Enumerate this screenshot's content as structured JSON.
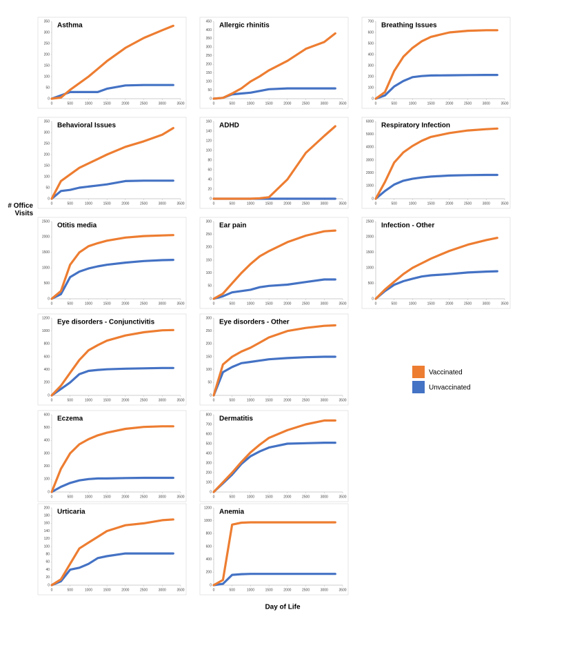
{
  "y_label": "# Office Visits",
  "x_label": "Day of Life",
  "chart_data": [
    {
      "type": "line",
      "title": "Asthma",
      "x": [
        0,
        250,
        500,
        750,
        1000,
        1250,
        1500,
        2000,
        2500,
        3000,
        3300
      ],
      "xlim": [
        0,
        3500
      ],
      "xticks": [
        0,
        500,
        1000,
        1500,
        2000,
        2500,
        3000,
        3500
      ],
      "ylim": [
        0,
        350
      ],
      "yticks": [
        0,
        50,
        100,
        150,
        200,
        250,
        300,
        350
      ],
      "series": [
        {
          "name": "Vaccinated",
          "color": "#ed7d31",
          "values": [
            0,
            5,
            40,
            70,
            100,
            135,
            170,
            230,
            275,
            310,
            330
          ]
        },
        {
          "name": "Unvaccinated",
          "color": "#4472c4",
          "values": [
            0,
            15,
            30,
            30,
            30,
            30,
            45,
            60,
            62,
            62,
            62
          ]
        }
      ]
    },
    {
      "type": "line",
      "title": "Allergic  rhinitis",
      "x": [
        0,
        250,
        500,
        750,
        1000,
        1250,
        1500,
        2000,
        2500,
        3000,
        3300
      ],
      "xlim": [
        0,
        3500
      ],
      "xticks": [
        0,
        500,
        1000,
        1500,
        2000,
        2500,
        3000,
        3500
      ],
      "ylim": [
        0,
        450
      ],
      "yticks": [
        0,
        50,
        100,
        150,
        200,
        250,
        300,
        350,
        400,
        450
      ],
      "series": [
        {
          "name": "Vaccinated",
          "color": "#ed7d31",
          "values": [
            0,
            5,
            30,
            60,
            100,
            130,
            165,
            220,
            290,
            330,
            380
          ]
        },
        {
          "name": "Unvaccinated",
          "color": "#4472c4",
          "values": [
            0,
            5,
            25,
            30,
            35,
            45,
            55,
            60,
            60,
            60,
            60
          ]
        }
      ]
    },
    {
      "type": "line",
      "title": "Breathing  Issues",
      "x": [
        0,
        250,
        500,
        750,
        1000,
        1250,
        1500,
        2000,
        2500,
        3000,
        3300
      ],
      "xlim": [
        0,
        3500
      ],
      "xticks": [
        0,
        500,
        1000,
        1500,
        2000,
        2500,
        3000,
        3500
      ],
      "ylim": [
        0,
        700
      ],
      "yticks": [
        0,
        100,
        200,
        300,
        400,
        500,
        600,
        700
      ],
      "series": [
        {
          "name": "Vaccinated",
          "color": "#ed7d31",
          "values": [
            0,
            60,
            250,
            380,
            460,
            520,
            560,
            600,
            615,
            620,
            620
          ]
        },
        {
          "name": "Unvaccinated",
          "color": "#4472c4",
          "values": [
            0,
            30,
            110,
            160,
            195,
            205,
            210,
            212,
            214,
            215,
            215
          ]
        }
      ]
    },
    {
      "type": "line",
      "title": "Behavioral  Issues",
      "x": [
        0,
        250,
        500,
        750,
        1000,
        1250,
        1500,
        2000,
        2500,
        3000,
        3300
      ],
      "xlim": [
        0,
        3500
      ],
      "xticks": [
        0,
        500,
        1000,
        1500,
        2000,
        2500,
        3000,
        3500
      ],
      "ylim": [
        0,
        350
      ],
      "yticks": [
        0,
        50,
        100,
        150,
        200,
        250,
        300,
        350
      ],
      "series": [
        {
          "name": "Vaccinated",
          "color": "#ed7d31",
          "values": [
            0,
            80,
            110,
            140,
            160,
            180,
            200,
            235,
            260,
            290,
            320
          ]
        },
        {
          "name": "Unvaccinated",
          "color": "#4472c4",
          "values": [
            0,
            35,
            40,
            50,
            55,
            60,
            65,
            80,
            82,
            82,
            82
          ]
        }
      ]
    },
    {
      "type": "line",
      "title": "ADHD",
      "x": [
        0,
        250,
        500,
        750,
        1000,
        1250,
        1500,
        2000,
        2500,
        3000,
        3300
      ],
      "xlim": [
        0,
        3500
      ],
      "xticks": [
        0,
        500,
        1000,
        1500,
        2000,
        2500,
        3000,
        3500
      ],
      "ylim": [
        0,
        160
      ],
      "yticks": [
        0,
        20,
        40,
        60,
        80,
        100,
        120,
        140,
        160
      ],
      "series": [
        {
          "name": "Vaccinated",
          "color": "#ed7d31",
          "values": [
            0,
            0,
            0,
            0,
            0,
            1,
            3,
            40,
            95,
            130,
            150
          ]
        },
        {
          "name": "Unvaccinated",
          "color": "#4472c4",
          "values": [
            0,
            0,
            0,
            0,
            0,
            0,
            0,
            0,
            0,
            0,
            0
          ]
        }
      ]
    },
    {
      "type": "line",
      "title": "Respiratory Infection",
      "x": [
        0,
        250,
        500,
        750,
        1000,
        1250,
        1500,
        2000,
        2500,
        3000,
        3300
      ],
      "xlim": [
        0,
        3500
      ],
      "xticks": [
        0,
        500,
        1000,
        1500,
        2000,
        2500,
        3000,
        3500
      ],
      "ylim": [
        0,
        6000
      ],
      "yticks": [
        0,
        1000,
        2000,
        3000,
        4000,
        5000,
        6000
      ],
      "series": [
        {
          "name": "Vaccinated",
          "color": "#ed7d31",
          "values": [
            0,
            1300,
            2800,
            3600,
            4100,
            4500,
            4800,
            5100,
            5300,
            5400,
            5450
          ]
        },
        {
          "name": "Unvaccinated",
          "color": "#4472c4",
          "values": [
            0,
            600,
            1100,
            1400,
            1550,
            1650,
            1720,
            1800,
            1830,
            1850,
            1850
          ]
        }
      ]
    },
    {
      "type": "line",
      "title": "Otitis media",
      "x": [
        0,
        250,
        500,
        750,
        1000,
        1250,
        1500,
        2000,
        2500,
        3000,
        3300
      ],
      "xlim": [
        0,
        3500
      ],
      "xticks": [
        0,
        500,
        1000,
        1500,
        2000,
        2500,
        3000,
        3500
      ],
      "ylim": [
        0,
        2500
      ],
      "yticks": [
        0,
        500,
        1000,
        1500,
        2000,
        2500
      ],
      "series": [
        {
          "name": "Vaccinated",
          "color": "#ed7d31",
          "values": [
            0,
            250,
            1100,
            1500,
            1700,
            1800,
            1880,
            1980,
            2030,
            2050,
            2060
          ]
        },
        {
          "name": "Unvaccinated",
          "color": "#4472c4",
          "values": [
            0,
            150,
            700,
            880,
            980,
            1050,
            1100,
            1170,
            1220,
            1250,
            1260
          ]
        }
      ]
    },
    {
      "type": "line",
      "title": "Ear pain",
      "x": [
        0,
        250,
        500,
        750,
        1000,
        1250,
        1500,
        2000,
        2500,
        3000,
        3300
      ],
      "xlim": [
        0,
        3500
      ],
      "xticks": [
        0,
        500,
        1000,
        1500,
        2000,
        2500,
        3000,
        3500
      ],
      "ylim": [
        0,
        300
      ],
      "yticks": [
        0,
        50,
        100,
        150,
        200,
        250,
        300
      ],
      "series": [
        {
          "name": "Vaccinated",
          "color": "#ed7d31",
          "values": [
            0,
            20,
            60,
            100,
            135,
            165,
            185,
            220,
            245,
            262,
            265
          ]
        },
        {
          "name": "Unvaccinated",
          "color": "#4472c4",
          "values": [
            0,
            10,
            25,
            30,
            35,
            45,
            50,
            55,
            65,
            75,
            75
          ]
        }
      ]
    },
    {
      "type": "line",
      "title": "Infection  - Other",
      "x": [
        0,
        250,
        500,
        750,
        1000,
        1250,
        1500,
        2000,
        2500,
        3000,
        3300
      ],
      "xlim": [
        0,
        3500
      ],
      "xticks": [
        0,
        500,
        1000,
        1500,
        2000,
        2500,
        3000,
        3500
      ],
      "ylim": [
        0,
        2500
      ],
      "yticks": [
        0,
        500,
        1000,
        1500,
        2000,
        2500
      ],
      "series": [
        {
          "name": "Vaccinated",
          "color": "#ed7d31",
          "values": [
            0,
            300,
            550,
            800,
            1000,
            1150,
            1300,
            1550,
            1750,
            1900,
            1970
          ]
        },
        {
          "name": "Unvaccinated",
          "color": "#4472c4",
          "values": [
            0,
            250,
            450,
            570,
            650,
            720,
            760,
            800,
            850,
            880,
            890
          ]
        }
      ]
    },
    {
      "type": "line",
      "title": "Eye disorders - Conjunctivitis",
      "x": [
        0,
        250,
        500,
        750,
        1000,
        1250,
        1500,
        2000,
        2500,
        3000,
        3300
      ],
      "xlim": [
        0,
        3500
      ],
      "xticks": [
        0,
        500,
        1000,
        1500,
        2000,
        2500,
        3000,
        3500
      ],
      "ylim": [
        0,
        1200
      ],
      "yticks": [
        0,
        200,
        400,
        600,
        800,
        1000,
        1200
      ],
      "series": [
        {
          "name": "Vaccinated",
          "color": "#ed7d31",
          "values": [
            0,
            150,
            350,
            550,
            700,
            780,
            850,
            930,
            980,
            1010,
            1015
          ]
        },
        {
          "name": "Unvaccinated",
          "color": "#4472c4",
          "values": [
            0,
            100,
            200,
            330,
            380,
            395,
            405,
            415,
            420,
            425,
            425
          ]
        }
      ]
    },
    {
      "type": "line",
      "title": "Eye disorders - Other",
      "x": [
        0,
        250,
        500,
        750,
        1000,
        1250,
        1500,
        2000,
        2500,
        3000,
        3300
      ],
      "xlim": [
        0,
        3500
      ],
      "xticks": [
        0,
        500,
        1000,
        1500,
        2000,
        2500,
        3000,
        3500
      ],
      "ylim": [
        0,
        300
      ],
      "yticks": [
        0,
        50,
        100,
        150,
        200,
        250,
        300
      ],
      "series": [
        {
          "name": "Vaccinated",
          "color": "#ed7d31",
          "values": [
            0,
            120,
            150,
            170,
            185,
            205,
            225,
            250,
            262,
            270,
            272
          ]
        },
        {
          "name": "Unvaccinated",
          "color": "#4472c4",
          "values": [
            0,
            90,
            110,
            125,
            130,
            135,
            140,
            145,
            148,
            150,
            150
          ]
        }
      ]
    },
    {
      "type": "line",
      "title": "Eczema",
      "x": [
        0,
        250,
        500,
        750,
        1000,
        1250,
        1500,
        2000,
        2500,
        3000,
        3300
      ],
      "xlim": [
        0,
        3500
      ],
      "xticks": [
        0,
        500,
        1000,
        1500,
        2000,
        2500,
        3000,
        3500
      ],
      "ylim": [
        0,
        600
      ],
      "yticks": [
        0,
        100,
        200,
        300,
        400,
        500,
        600
      ],
      "series": [
        {
          "name": "Vaccinated",
          "color": "#ed7d31",
          "values": [
            0,
            180,
            300,
            370,
            410,
            440,
            460,
            490,
            505,
            510,
            510
          ]
        },
        {
          "name": "Unvaccinated",
          "color": "#4472c4",
          "values": [
            0,
            40,
            70,
            90,
            100,
            105,
            105,
            108,
            110,
            110,
            110
          ]
        }
      ]
    },
    {
      "type": "line",
      "title": "Dermatitis",
      "x": [
        0,
        250,
        500,
        750,
        1000,
        1250,
        1500,
        2000,
        2500,
        3000,
        3300
      ],
      "xlim": [
        0,
        3500
      ],
      "xticks": [
        0,
        500,
        1000,
        1500,
        2000,
        2500,
        3000,
        3500
      ],
      "ylim": [
        0,
        800
      ],
      "yticks": [
        0,
        100,
        200,
        300,
        400,
        500,
        600,
        700,
        800
      ],
      "series": [
        {
          "name": "Vaccinated",
          "color": "#ed7d31",
          "values": [
            0,
            100,
            200,
            310,
            410,
            490,
            560,
            640,
            700,
            740,
            740
          ]
        },
        {
          "name": "Unvaccinated",
          "color": "#4472c4",
          "values": [
            0,
            90,
            180,
            290,
            370,
            420,
            460,
            500,
            505,
            510,
            510
          ]
        }
      ]
    },
    {
      "type": "line",
      "title": "Urticaria",
      "x": [
        0,
        250,
        500,
        750,
        1000,
        1250,
        1500,
        2000,
        2500,
        3000,
        3300
      ],
      "xlim": [
        0,
        3500
      ],
      "xticks": [
        0,
        500,
        1000,
        1500,
        2000,
        2500,
        3000,
        3500
      ],
      "ylim": [
        0,
        200
      ],
      "yticks": [
        0,
        20,
        40,
        60,
        80,
        100,
        120,
        140,
        160,
        180,
        200
      ],
      "series": [
        {
          "name": "Vaccinated",
          "color": "#ed7d31",
          "values": [
            0,
            15,
            55,
            95,
            110,
            125,
            140,
            155,
            160,
            168,
            170
          ]
        },
        {
          "name": "Unvaccinated",
          "color": "#4472c4",
          "values": [
            0,
            10,
            40,
            45,
            55,
            70,
            75,
            82,
            82,
            82,
            82
          ]
        }
      ]
    },
    {
      "type": "line",
      "title": "Anemia",
      "x": [
        0,
        250,
        500,
        750,
        1000,
        1250,
        1500,
        2000,
        2500,
        3000,
        3300
      ],
      "xlim": [
        0,
        3500
      ],
      "xticks": [
        0,
        500,
        1000,
        1500,
        2000,
        2500,
        3000,
        3500
      ],
      "ylim": [
        0,
        1200
      ],
      "yticks": [
        0,
        200,
        400,
        600,
        800,
        1000,
        1200
      ],
      "series": [
        {
          "name": "Vaccinated",
          "color": "#ed7d31",
          "values": [
            0,
            80,
            940,
            970,
            975,
            975,
            975,
            975,
            975,
            975,
            975
          ]
        },
        {
          "name": "Unvaccinated",
          "color": "#4472c4",
          "values": [
            0,
            20,
            160,
            170,
            175,
            175,
            175,
            175,
            175,
            175,
            175
          ]
        }
      ]
    }
  ]
}
